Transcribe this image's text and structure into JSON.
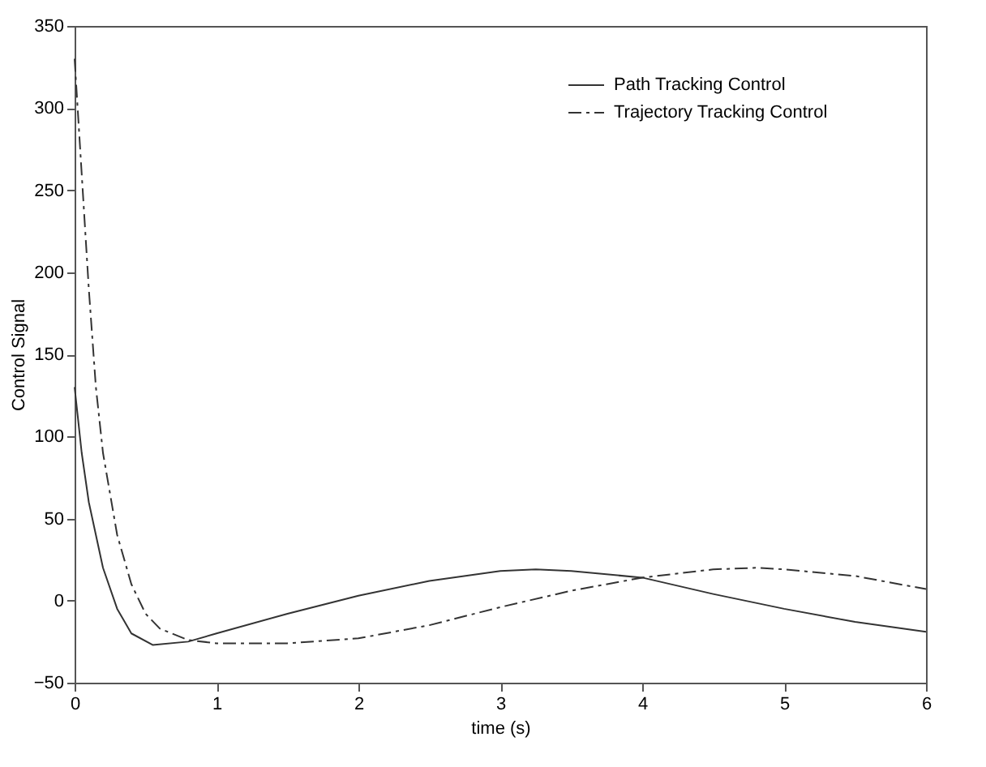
{
  "chart_data": {
    "type": "line",
    "xlabel": "time (s)",
    "ylabel": "Control Signal",
    "xlim": [
      0,
      6
    ],
    "ylim": [
      -50,
      350
    ],
    "xticks": [
      0,
      1,
      2,
      3,
      4,
      5,
      6
    ],
    "yticks": [
      -50,
      0,
      50,
      100,
      150,
      200,
      250,
      300,
      350
    ],
    "grid": false,
    "legend": "top right",
    "series": [
      {
        "name": "Path Tracking Control",
        "color": "#333333",
        "line_style": "solid",
        "x": [
          0,
          0.05,
          0.1,
          0.2,
          0.3,
          0.4,
          0.55,
          0.8,
          1.0,
          1.5,
          2.0,
          2.5,
          3.0,
          3.25,
          3.5,
          4.0,
          4.5,
          5.0,
          5.5,
          6.0
        ],
        "values": [
          130,
          90,
          60,
          20,
          -5,
          -20,
          -27,
          -25,
          -20,
          -8,
          3,
          12,
          18,
          19,
          18,
          14,
          4,
          -5,
          -13,
          -19
        ]
      },
      {
        "name": "Trajectory Tracking Control",
        "color": "#333333",
        "line_style": "dashed",
        "x": [
          0,
          0.05,
          0.1,
          0.15,
          0.2,
          0.3,
          0.4,
          0.5,
          0.6,
          0.8,
          1.0,
          1.5,
          2.0,
          2.5,
          3.0,
          3.5,
          4.0,
          4.5,
          4.8,
          5.0,
          5.5,
          6.0
        ],
        "values": [
          330,
          260,
          190,
          130,
          90,
          40,
          10,
          -8,
          -17,
          -24,
          -26,
          -26,
          -23,
          -15,
          -4,
          6,
          14,
          19,
          20,
          19,
          15,
          7
        ]
      }
    ]
  }
}
